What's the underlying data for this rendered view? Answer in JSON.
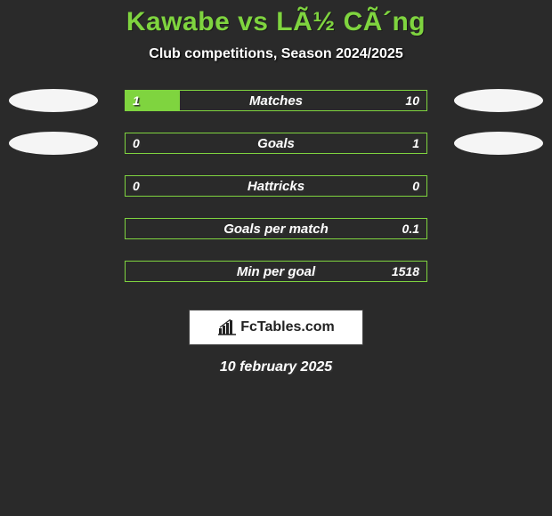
{
  "title": "Kawabe vs LÃ½ CÃ´ng",
  "subtitle": "Club competitions, Season 2024/2025",
  "colors": {
    "background": "#2a2a2a",
    "accent": "#7fd43f",
    "ellipse": "#f5f5f5",
    "text": "#ffffff"
  },
  "rows": [
    {
      "label": "Matches",
      "left": "1",
      "right": "10",
      "left_pct": 18,
      "right_pct": 0,
      "show_ellipses": true
    },
    {
      "label": "Goals",
      "left": "0",
      "right": "1",
      "left_pct": 0,
      "right_pct": 0,
      "show_ellipses": true
    },
    {
      "label": "Hattricks",
      "left": "0",
      "right": "0",
      "left_pct": 0,
      "right_pct": 0,
      "show_ellipses": false
    },
    {
      "label": "Goals per match",
      "left": "",
      "right": "0.1",
      "left_pct": 0,
      "right_pct": 0,
      "show_ellipses": false
    },
    {
      "label": "Min per goal",
      "left": "",
      "right": "1518",
      "left_pct": 0,
      "right_pct": 0,
      "show_ellipses": false
    }
  ],
  "logo": {
    "text": "FcTables.com"
  },
  "date": "10 february 2025"
}
